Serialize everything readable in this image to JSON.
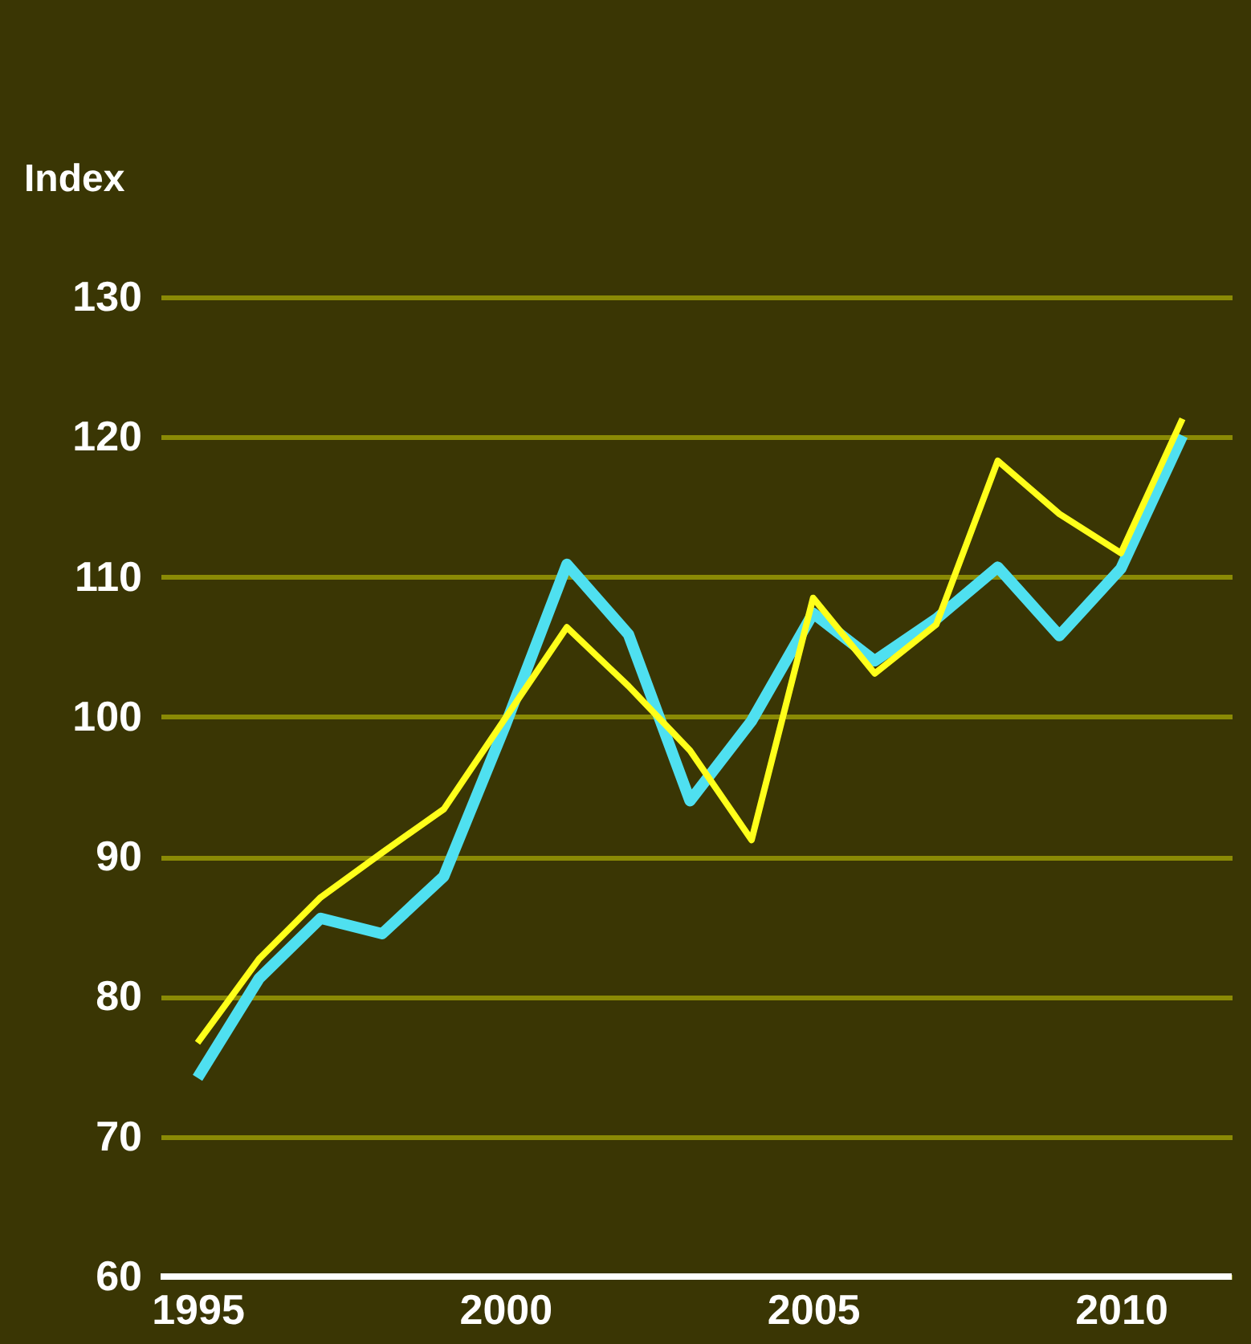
{
  "chart_data": {
    "type": "line",
    "ylabel": "Index",
    "x": [
      1995,
      1996,
      1997,
      1998,
      1999,
      2000,
      2001,
      2002,
      2003,
      2004,
      2005,
      2006,
      2007,
      2008,
      2009,
      2010,
      2011
    ],
    "series": [
      {
        "color": "#4fe0f0",
        "values": [
          74.2,
          81.3,
          85.6,
          84.5,
          88.6,
          99.4,
          110.9,
          105.9,
          94.0,
          99.7,
          107.4,
          104.0,
          107.0,
          110.7,
          105.8,
          110.6,
          120.1
        ]
      },
      {
        "color": "#ffff1a",
        "values": [
          76.7,
          82.7,
          87.1,
          90.3,
          93.4,
          99.9,
          106.4,
          102.2,
          97.6,
          91.2,
          108.5,
          103.1,
          106.6,
          118.3,
          114.5,
          111.7,
          121.3
        ]
      }
    ],
    "xlim": [
      1994.4,
      2011.8
    ],
    "xticks": [
      1995,
      2000,
      2005,
      2010
    ],
    "ylim": [
      60,
      130
    ],
    "yticks": [
      60,
      70,
      80,
      90,
      100,
      110,
      120,
      130
    ],
    "grid": "y",
    "marker": "none",
    "line_style": "solid"
  }
}
